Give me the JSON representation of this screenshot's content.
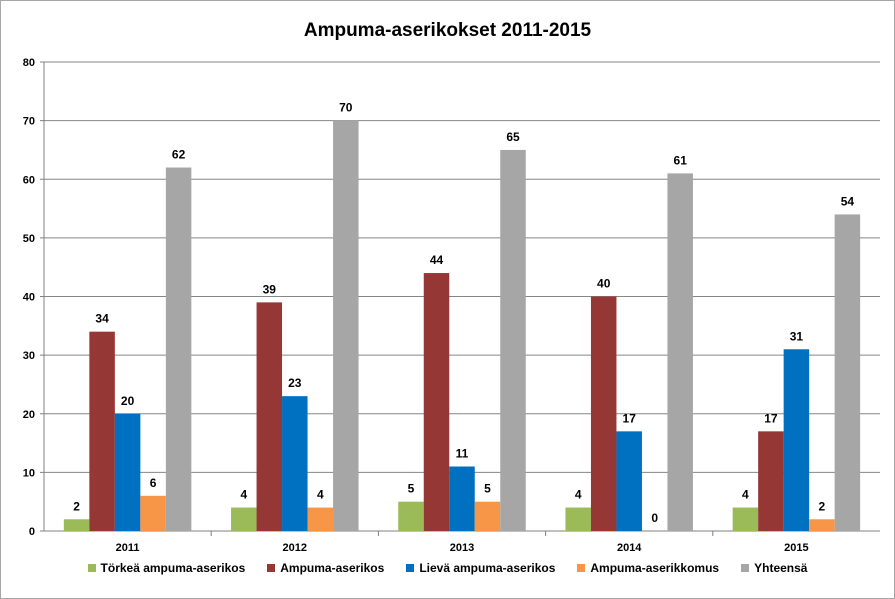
{
  "chart_data": {
    "type": "bar",
    "title": "Ampuma-aserikokset 2011-2015",
    "xlabel": "",
    "ylabel": "",
    "ylim": [
      0,
      80
    ],
    "yticks": [
      0,
      10,
      20,
      30,
      40,
      50,
      60,
      70,
      80
    ],
    "categories": [
      "2011",
      "2012",
      "2013",
      "2014",
      "2015"
    ],
    "legend_position": "bottom",
    "grid": "horizontal",
    "series": [
      {
        "name": "Törkeä ampuma-aserikos",
        "color": "#9bbb59",
        "values": [
          2,
          4,
          5,
          4,
          4
        ]
      },
      {
        "name": "Ampuma-aserikos",
        "color": "#953735",
        "values": [
          34,
          39,
          44,
          40,
          17
        ]
      },
      {
        "name": "Lievä ampuma-aserikos",
        "color": "#0070c0",
        "values": [
          20,
          23,
          11,
          17,
          31
        ]
      },
      {
        "name": "Ampuma-aserikkomus",
        "color": "#f79646",
        "values": [
          6,
          4,
          5,
          0,
          2
        ]
      },
      {
        "name": "Yhteensä",
        "color": "#a6a6a6",
        "values": [
          62,
          70,
          65,
          61,
          54
        ]
      }
    ]
  }
}
